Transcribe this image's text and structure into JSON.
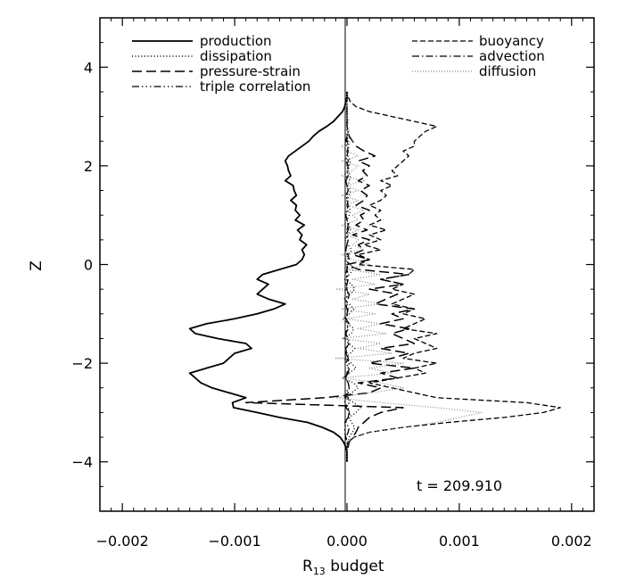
{
  "chart_data": {
    "type": "line",
    "title": "",
    "xlabel_main": "R",
    "xlabel_sub": "13",
    "xlabel_rest": " budget",
    "ylabel": "Z",
    "annotation": "t = 209.910",
    "xlim": [
      -0.0022,
      0.0022
    ],
    "ylim": [
      -5.0,
      5.0
    ],
    "xticks": [
      -0.002,
      -0.001,
      0.0,
      0.001,
      0.002
    ],
    "xtick_labels": [
      "−0.002",
      "−0.001",
      "0.000",
      "0.001",
      "0.002"
    ],
    "yticks": [
      -4,
      -2,
      0,
      2,
      4
    ],
    "ytick_labels": [
      "−4",
      "−2",
      "0",
      "2",
      "4"
    ],
    "grid": false,
    "legend_placement": "top",
    "z": [
      -4.0,
      -3.9,
      -3.8,
      -3.7,
      -3.6,
      -3.5,
      -3.4,
      -3.3,
      -3.2,
      -3.1,
      -3.0,
      -2.9,
      -2.8,
      -2.7,
      -2.6,
      -2.5,
      -2.4,
      -2.3,
      -2.2,
      -2.1,
      -2.0,
      -1.9,
      -1.8,
      -1.7,
      -1.6,
      -1.5,
      -1.4,
      -1.3,
      -1.2,
      -1.1,
      -1.0,
      -0.9,
      -0.8,
      -0.7,
      -0.6,
      -0.5,
      -0.4,
      -0.3,
      -0.2,
      -0.1,
      0.0,
      0.1,
      0.2,
      0.3,
      0.4,
      0.5,
      0.6,
      0.7,
      0.8,
      0.9,
      1.0,
      1.1,
      1.2,
      1.3,
      1.4,
      1.5,
      1.6,
      1.7,
      1.8,
      1.9,
      2.0,
      2.1,
      2.2,
      2.3,
      2.4,
      2.5,
      2.6,
      2.7,
      2.8,
      2.9,
      3.0,
      3.1,
      3.2,
      3.3,
      3.4,
      3.5
    ],
    "series": [
      {
        "name": "production",
        "dash": "",
        "width": 1.8,
        "color": "#000000",
        "col": "left",
        "values": [
          0,
          0,
          0,
          -1e-05,
          -3e-05,
          -6e-05,
          -0.00012,
          -0.00022,
          -0.00035,
          -0.0006,
          -0.0008,
          -0.00101,
          -0.00102,
          -0.0009,
          -0.00105,
          -0.0012,
          -0.0013,
          -0.00135,
          -0.0014,
          -0.00125,
          -0.0011,
          -0.00105,
          -0.001,
          -0.00085,
          -0.0009,
          -0.00115,
          -0.00135,
          -0.0014,
          -0.00125,
          -0.001,
          -0.0008,
          -0.00065,
          -0.00055,
          -0.0007,
          -0.0008,
          -0.00075,
          -0.0007,
          -0.0008,
          -0.00075,
          -0.0006,
          -0.00045,
          -0.0004,
          -0.00038,
          -0.0004,
          -0.00036,
          -0.00042,
          -0.0004,
          -0.00044,
          -0.00038,
          -0.00046,
          -0.00042,
          -0.00046,
          -0.00045,
          -0.0005,
          -0.00045,
          -0.00047,
          -0.00048,
          -0.00055,
          -0.0005,
          -0.00052,
          -0.00053,
          -0.00055,
          -0.00052,
          -0.00046,
          -0.0004,
          -0.00034,
          -0.0003,
          -0.00025,
          -0.00018,
          -0.00012,
          -8e-05,
          -4e-05,
          -2e-05,
          -1e-05,
          0,
          0
        ]
      },
      {
        "name": "dissipation",
        "dash": "1,2.5",
        "width": 1.4,
        "color": "#000000",
        "col": "left",
        "values": [
          0,
          0,
          0,
          0,
          1e-05,
          2e-05,
          5e-05,
          7e-05,
          4e-05,
          2e-05,
          8e-05,
          0.00012,
          6e-05,
          -2e-05,
          4e-05,
          0.0001,
          6e-05,
          -4e-05,
          2e-05,
          8e-05,
          4e-05,
          -2e-05,
          3e-05,
          7e-05,
          2e-05,
          -3e-05,
          4e-05,
          6e-05,
          1e-05,
          -4e-05,
          2e-05,
          6e-05,
          2e-05,
          -3e-05,
          3e-05,
          7e-05,
          4e-05,
          -2e-05,
          2e-05,
          6e-05,
          3e-05,
          -2e-05,
          2e-05,
          4e-05,
          1e-05,
          -2e-05,
          1e-05,
          3e-05,
          2e-05,
          0.0,
          2e-05,
          3e-05,
          1e-05,
          0.0,
          2e-05,
          3e-05,
          1e-05,
          2e-05,
          3e-05,
          1e-05,
          2e-05,
          3e-05,
          1e-05,
          0.0,
          2e-05,
          1e-05,
          0.0,
          1e-05,
          0.0,
          1e-05,
          0,
          0,
          0,
          0,
          0,
          0
        ]
      },
      {
        "name": "pressure-strain",
        "dash": "11,5",
        "width": 1.5,
        "color": "#000000",
        "col": "left",
        "values": [
          0,
          0,
          0,
          1e-05,
          2e-05,
          5e-05,
          8e-05,
          0.0001,
          0.00015,
          0.0002,
          0.0003,
          0.0005,
          -0.0009,
          -0.0002,
          0.0002,
          0.0003,
          0.0001,
          0.00045,
          0.0003,
          0.0006,
          0.0002,
          0.0004,
          0.00055,
          0.0003,
          0.0006,
          0.0005,
          0.0004,
          0.00055,
          0.0003,
          0.0005,
          0.0004,
          0.0006,
          0.00025,
          0.00035,
          0.00045,
          0.0002,
          0.0005,
          0.0003,
          0.00055,
          0.0001,
          0.0,
          0.0002,
          5e-05,
          0.00015,
          0.0001,
          0.0002,
          5e-05,
          0.00018,
          8e-05,
          0.00015,
          0.00012,
          0.0002,
          8e-05,
          0.00015,
          0.00018,
          0.00012,
          0.0002,
          0.0001,
          0.00018,
          0.00014,
          0.0002,
          0.0001,
          0.00025,
          0.00015,
          8e-05,
          5e-05,
          2e-05,
          1e-05,
          0,
          0,
          0,
          0,
          0,
          0,
          0,
          0
        ]
      },
      {
        "name": "triple correlation",
        "dash": "8,3,1.5,3,1.5,3,1.5,3",
        "width": 1.3,
        "color": "#000000",
        "col": "left",
        "values": [
          0,
          0,
          0,
          0,
          0,
          -1e-05,
          -2e-05,
          -2e-05,
          -1e-05,
          1e-05,
          2e-05,
          1e-05,
          -2e-05,
          -1e-05,
          1e-05,
          2e-05,
          1e-05,
          -1e-05,
          0.0,
          1e-05,
          2e-05,
          1e-05,
          -1e-05,
          0.0,
          1e-05,
          0.0,
          -1e-05,
          1e-05,
          0.0,
          -1e-05,
          0.0,
          1e-05,
          0.0,
          -1e-05,
          1e-05,
          0.0,
          -1e-05,
          0.0,
          1e-05,
          0.0,
          0.0,
          1e-05,
          0.0,
          -1e-05,
          0.0,
          1e-05,
          0.0,
          0.0,
          1e-05,
          0.0,
          -1e-05,
          0.0,
          1e-05,
          0.0,
          0.0,
          1e-05,
          0.0,
          -1e-05,
          0.0,
          1e-05,
          0.0,
          1e-05,
          0.0,
          0.0,
          1e-05,
          0.0,
          0,
          0,
          0,
          0,
          0,
          0,
          0,
          0,
          0,
          0
        ]
      },
      {
        "name": "buoyancy",
        "dash": "6,3",
        "width": 1.3,
        "color": "#000000",
        "col": "right",
        "values": [
          0,
          0,
          0,
          0,
          2e-05,
          6e-05,
          0.0002,
          0.0005,
          0.0009,
          0.0014,
          0.00175,
          0.0019,
          0.0016,
          0.0008,
          0.0006,
          0.0004,
          0.0002,
          0.00045,
          0.0007,
          0.0006,
          0.0008,
          0.0005,
          0.0006,
          0.0008,
          0.0007,
          0.0006,
          0.0008,
          0.0005,
          0.0006,
          0.0007,
          0.0005,
          0.0006,
          0.0004,
          0.0005,
          0.0006,
          0.0004,
          0.0005,
          0.0003,
          0.00055,
          0.0006,
          0.0001,
          0.0002,
          0.0001,
          0.0003,
          0.00015,
          0.0003,
          0.0002,
          0.00035,
          0.0002,
          0.0003,
          0.00025,
          0.0003,
          0.0002,
          0.0003,
          0.00035,
          0.0003,
          0.0004,
          0.0003,
          0.00045,
          0.0004,
          0.00045,
          0.0005,
          0.00055,
          0.0005,
          0.0006,
          0.0006,
          0.00065,
          0.0007,
          0.0008,
          0.0006,
          0.0004,
          0.0002,
          8e-05,
          3e-05,
          1e-05,
          0
        ]
      },
      {
        "name": "advection",
        "dash": "8,3,1.5,3",
        "width": 1.3,
        "color": "#000000",
        "col": "right",
        "values": [
          0,
          0,
          0,
          0,
          1e-05,
          -1e-05,
          1e-05,
          2e-05,
          -2e-05,
          1e-05,
          3e-05,
          -1e-05,
          2e-05,
          1e-05,
          -1e-05,
          2e-05,
          1e-05,
          -1e-05,
          1e-05,
          2e-05,
          -1e-05,
          1e-05,
          0.0,
          -1e-05,
          2e-05,
          1e-05,
          -1e-05,
          0.0,
          2e-05,
          -1e-05,
          1e-05,
          0.0,
          -1e-05,
          1e-05,
          2e-05,
          -1e-05,
          0.0,
          1e-05,
          -1e-05,
          0.0,
          1e-05,
          2e-05,
          1e-05,
          -1e-05,
          0.0,
          1e-05,
          -1e-05,
          1e-05,
          2e-05,
          0.0,
          -1e-05,
          1e-05,
          0.0,
          1e-05,
          -1e-05,
          1e-05,
          0.0,
          -1e-05,
          1e-05,
          0.0,
          1e-05,
          -1e-05,
          0.0,
          1e-05,
          0.0,
          -1e-05,
          0.0,
          1e-05,
          0.0,
          0.0,
          0,
          0,
          0,
          0,
          0,
          0
        ]
      },
      {
        "name": "diffusion",
        "dash": "1,2",
        "width": 1.2,
        "color": "#888888",
        "col": "right",
        "values": [
          0,
          0,
          0,
          0,
          2e-05,
          5e-05,
          0.0002,
          0.0005,
          0.0008,
          0.001,
          0.0012,
          0.0008,
          0.0003,
          -0.0001,
          0.0002,
          0.0005,
          0.0003,
          -5e-05,
          0.0004,
          0.0002,
          0.0005,
          -0.0001,
          0.0004,
          0.0001,
          0.0003,
          -5e-05,
          0.00035,
          0.0001,
          0.0003,
          0.0,
          0.00025,
          -5e-05,
          0.0003,
          5e-05,
          0.0002,
          -0.0001,
          0.00025,
          5e-05,
          0.0003,
          0.0,
          0.0002,
          5e-05,
          -5e-05,
          0.00015,
          5e-05,
          0.0001,
          0.0,
          0.0001,
          -5e-05,
          0.0001,
          5e-05,
          0.00015,
          0.0,
          0.0001,
          -5e-05,
          0.0001,
          0.0,
          0.00015,
          -5e-05,
          5e-05,
          0.0001,
          -5e-05,
          0.0001,
          0.0,
          -5e-05,
          5e-05,
          0.0,
          2e-05,
          0.0,
          0,
          0,
          0,
          0,
          0,
          0,
          0
        ]
      }
    ]
  }
}
